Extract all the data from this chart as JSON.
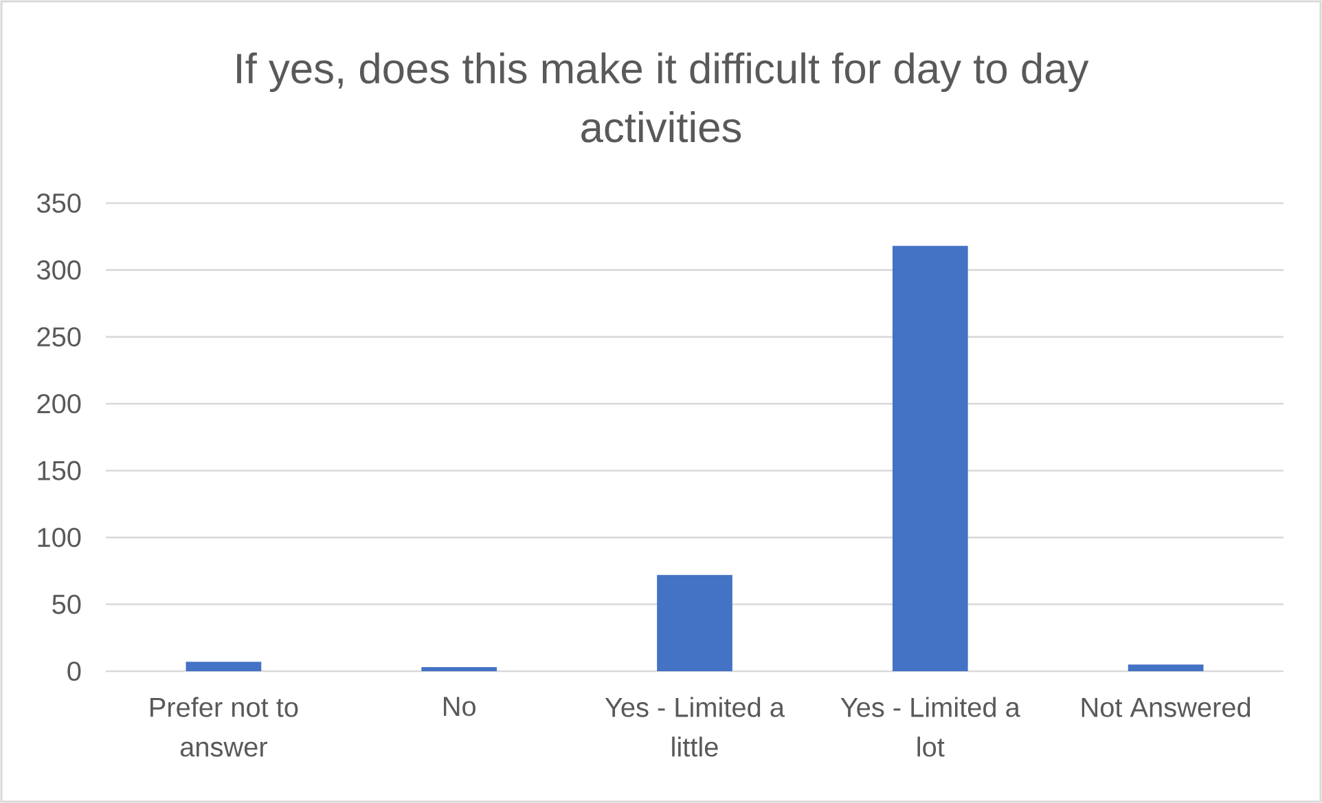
{
  "chart_data": {
    "type": "bar",
    "title": "If yes, does this make it difficult for day to day activities",
    "categories": [
      "Prefer not to answer",
      "No",
      "Yes - Limited a little",
      "Yes - Limited a lot",
      "Not Answered"
    ],
    "values": [
      7,
      3,
      72,
      318,
      5
    ],
    "color": "#4472c4",
    "ylim": [
      0,
      350
    ],
    "yticks": [
      0,
      50,
      100,
      150,
      200,
      250,
      300,
      350
    ],
    "grid": "y"
  }
}
